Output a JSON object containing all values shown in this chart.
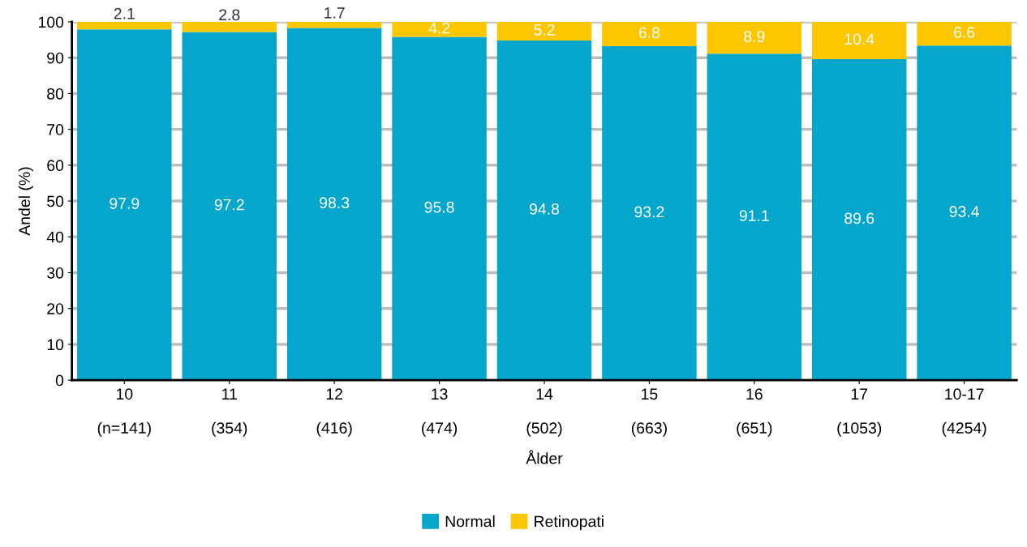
{
  "chart_data": {
    "type": "bar",
    "stacked": true,
    "xlabel": "Ålder",
    "ylabel": "Andel (%)",
    "categories": [
      "10\n\n(n=141)",
      "11\n\n(354)",
      "12\n\n(416)",
      "13\n\n(474)",
      "14\n\n(502)",
      "15\n\n(663)",
      "16\n\n(651)",
      "17\n\n(1053)",
      "10-17\n\n(4254)"
    ],
    "series": [
      {
        "name": "Normal",
        "color": "#04a6cc",
        "values": [
          97.9,
          97.2,
          98.3,
          95.8,
          94.8,
          93.2,
          91.1,
          89.6,
          93.4
        ]
      },
      {
        "name": "Retinopati",
        "color": "#fcc600",
        "values": [
          2.1,
          2.8,
          1.7,
          4.2,
          5.2,
          6.8,
          8.9,
          10.4,
          6.6
        ]
      }
    ],
    "ylim": [
      0,
      100
    ],
    "yticks": [
      0,
      10,
      20,
      30,
      40,
      50,
      60,
      70,
      80,
      90,
      100
    ],
    "grid": "y",
    "legend": "bottom",
    "data_labels": true
  }
}
